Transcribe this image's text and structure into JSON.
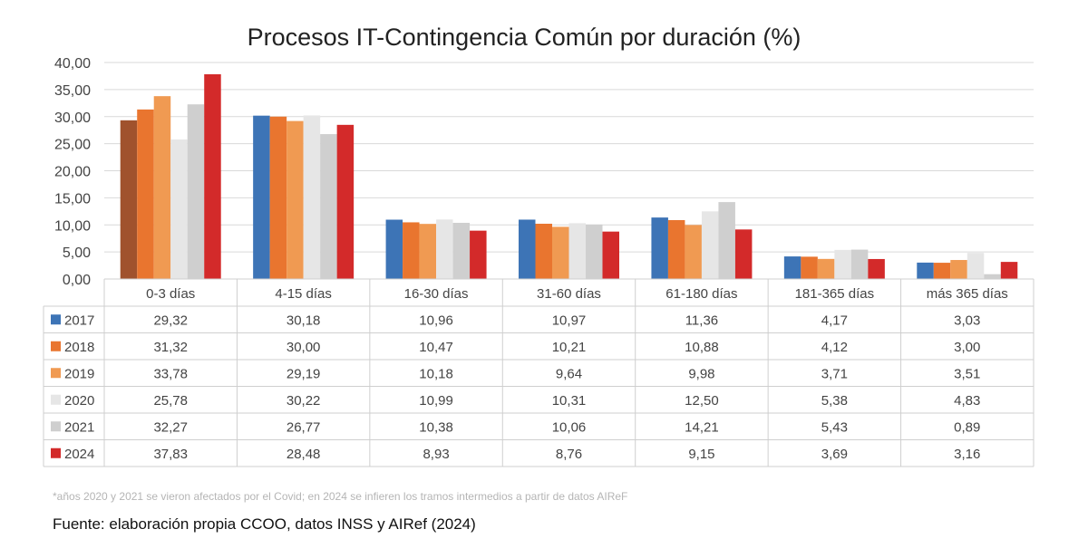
{
  "chart_data": {
    "type": "bar",
    "title": "Procesos IT-Contingencia Común por duración (%)",
    "categories": [
      "0-3 días",
      "4-15 días",
      "16-30 días",
      "31-60 días",
      "61-180 días",
      "181-365 días",
      "más 365 días"
    ],
    "ylim": [
      0,
      40
    ],
    "yticks": [
      "0,00",
      "5,00",
      "10,00",
      "15,00",
      "20,00",
      "25,00",
      "30,00",
      "35,00",
      "40,00"
    ],
    "grid": true,
    "legend": "data table below chart",
    "series": [
      {
        "name": "2017",
        "color": "#3d74b6",
        "values": [
          29.32,
          30.18,
          10.96,
          10.97,
          11.36,
          4.17,
          3.03
        ],
        "labels": [
          "29,32",
          "30,18",
          "10,96",
          "10,97",
          "11,36",
          "4,17",
          "3,03"
        ]
      },
      {
        "name": "2018",
        "color": "#e9752f",
        "values": [
          31.32,
          30.0,
          10.47,
          10.21,
          10.88,
          4.12,
          3.0
        ],
        "labels": [
          "31,32",
          "30,00",
          "10,47",
          "10,21",
          "10,88",
          "4,12",
          "3,00"
        ]
      },
      {
        "name": "2019",
        "color": "#f09a52",
        "values": [
          33.78,
          29.19,
          10.18,
          9.64,
          9.98,
          3.71,
          3.51
        ],
        "labels": [
          "33,78",
          "29,19",
          "10,18",
          "9,64",
          "9,98",
          "3,71",
          "3,51"
        ]
      },
      {
        "name": "2020",
        "color": "#e6e6e6",
        "values": [
          25.78,
          30.22,
          10.99,
          10.31,
          12.5,
          5.38,
          4.83
        ],
        "labels": [
          "25,78",
          "30,22",
          "10,99",
          "10,31",
          "12,50",
          "5,38",
          "4,83"
        ]
      },
      {
        "name": "2021",
        "color": "#cfcfcf",
        "values": [
          32.27,
          26.77,
          10.38,
          10.06,
          14.21,
          5.43,
          0.89
        ],
        "labels": [
          "32,27",
          "26,77",
          "10,38",
          "10,06",
          "14,21",
          "5,43",
          "0,89"
        ]
      },
      {
        "name": "2024",
        "color": "#d32a2a",
        "values": [
          37.83,
          28.48,
          8.93,
          8.76,
          9.15,
          3.69,
          3.16
        ],
        "labels": [
          "37,83",
          "28,48",
          "8,93",
          "8,76",
          "9,15",
          "3,69",
          "3,16"
        ]
      }
    ],
    "first_bar_color": "#a0522d"
  },
  "footnote": "*años 2020 y 2021 se vieron afectados por el Covid; en 2024 se infieren los tramos intermedios  a partir de datos AIReF",
  "source": "Fuente: elaboración propia CCOO, datos INSS y AIRef (2024)"
}
